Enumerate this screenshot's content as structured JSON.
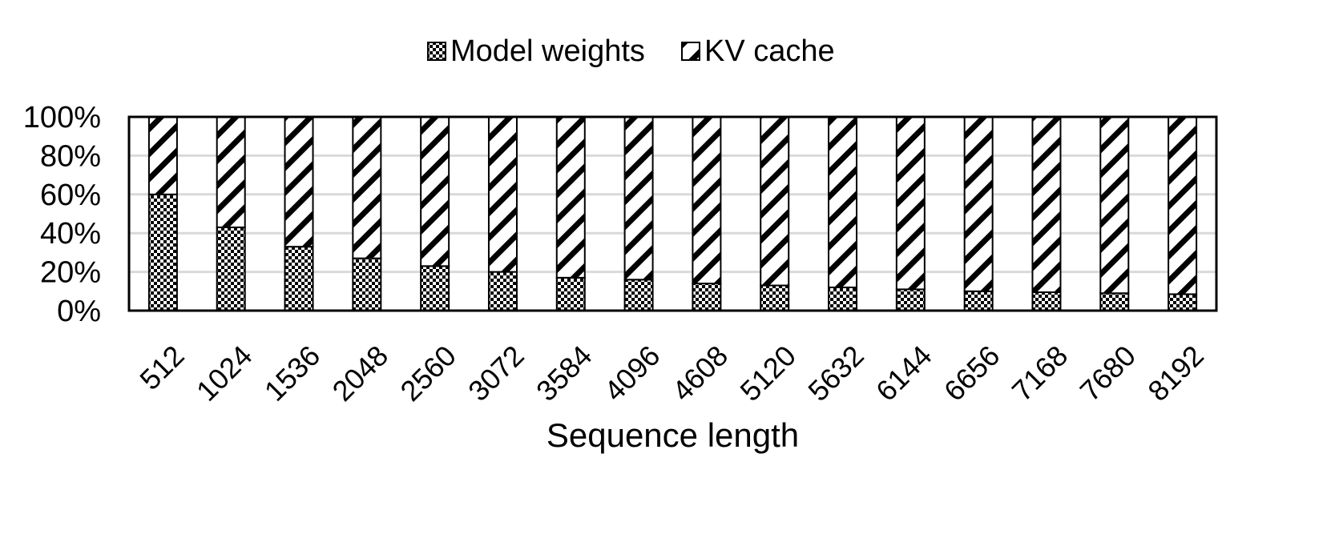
{
  "chart_data": {
    "type": "bar",
    "stacked": true,
    "xlabel": "Sequence length",
    "ylabel": "",
    "categories": [
      "512",
      "1024",
      "1536",
      "2048",
      "2560",
      "3072",
      "3584",
      "4096",
      "4608",
      "5120",
      "5632",
      "6144",
      "6656",
      "7168",
      "7680",
      "8192"
    ],
    "series": [
      {
        "name": "Model weights",
        "pattern": "checkerboard",
        "values": [
          60,
          43,
          33,
          27,
          23,
          20,
          17,
          16,
          14,
          13,
          12,
          11,
          10,
          9.5,
          9,
          8.5
        ]
      },
      {
        "name": "KV cache",
        "pattern": "diagonal-stripes",
        "values": [
          40,
          57,
          67,
          73,
          77,
          80,
          83,
          84,
          86,
          87,
          88,
          89,
          90,
          90.5,
          91,
          91.5
        ]
      }
    ],
    "ylim": [
      0,
      100
    ],
    "yticks": [
      "0%",
      "20%",
      "40%",
      "60%",
      "80%",
      "100%"
    ],
    "grid": true,
    "legend_position": "top-center",
    "colors": {
      "ink": "#000000",
      "grid": "#d9d9d9",
      "background": "#ffffff"
    }
  }
}
